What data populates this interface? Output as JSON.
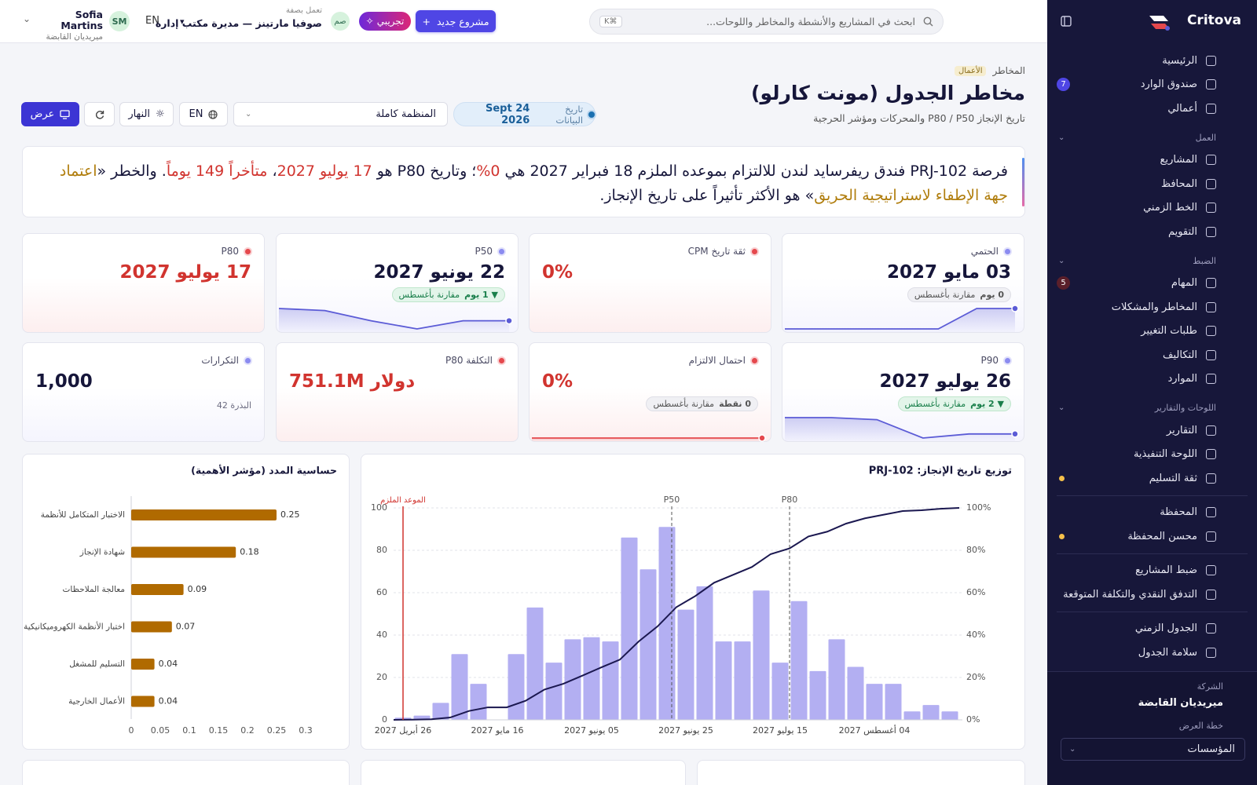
{
  "sidebar": {
    "brand": "Critova",
    "groups": [
      {
        "items": [
          {
            "label": "الرئيسية"
          },
          {
            "label": "صندوق الوارد",
            "badge": 7,
            "badge_color": "#4f46e5"
          },
          {
            "label": "أعمالي"
          }
        ]
      },
      {
        "title": "العمل",
        "items": [
          {
            "label": "المشاريع"
          },
          {
            "label": "المحافظ"
          },
          {
            "label": "الخط الزمني"
          },
          {
            "label": "التقويم"
          }
        ]
      },
      {
        "title": "الضبط",
        "items": [
          {
            "label": "المهام",
            "badge": 5,
            "badge_color": "#5a1f2a"
          },
          {
            "label": "المخاطر والمشكلات"
          },
          {
            "label": "طلبات التغيير"
          },
          {
            "label": "التكاليف"
          },
          {
            "label": "الموارد"
          }
        ]
      },
      {
        "title": "اللوحات والتقارير",
        "items": [
          {
            "label": "التقارير"
          },
          {
            "label": "اللوحة التنفيذية"
          },
          {
            "label": "ثقة التسليم",
            "dot": "#f5c04a"
          }
        ]
      },
      {
        "items": [
          {
            "label": "المحفظة"
          },
          {
            "label": "محسن المحفظة",
            "dot": "#f5c04a"
          }
        ]
      },
      {
        "items": [
          {
            "label": "ضبط المشاريع"
          },
          {
            "label": "التدفق النقدي والتكلفة المتوقعة"
          }
        ]
      },
      {
        "items": [
          {
            "label": "الجدول الزمني"
          },
          {
            "label": "سلامة الجدول"
          }
        ]
      }
    ],
    "footer": {
      "company_label": "الشركة",
      "company": "ميريديان القابضة",
      "plan_label": "خطة العرض",
      "plan": "المؤسسات"
    }
  },
  "topbar": {
    "search_placeholder": "ابحث في المشاريع والأنشطة والمخاطر واللوحات...",
    "shortcut": "K⌘",
    "new_project": "مشروع جديد",
    "demo": "تجريبي",
    "acting_initials": "صم",
    "acting_label": "تعمل بصفة",
    "acting_name": "صوفيا مارتينز — مديرة مكتب إدارة",
    "language": "EN",
    "user_initials": "SM",
    "user_name": "Sofia Martins",
    "user_company": "ميريديان القابضة"
  },
  "header": {
    "breadcrumb": "المخاطر",
    "tag": "الأعمال",
    "title": "مخاطر الجدول (مونت كارلو)",
    "subtitle": "تاريخ الإنجاز P80 / P50 والمحركات ومؤشر الحرجية"
  },
  "controls": {
    "data_date_label": "تاريخ البيانات",
    "data_date": "24 Sept 2026",
    "scope": "المنظمة كاملة",
    "language": "EN",
    "theme": "النهار",
    "view": "عرض"
  },
  "narrative": [
    {
      "text": "فرصة PRJ-102 فندق ريفرسايد لندن للالتزام بموعده الملزم 18 فبراير 2027 هي "
    },
    {
      "text": "0%",
      "color": "#d1342f"
    },
    {
      "text": "؛ وتاريخ P80 هو "
    },
    {
      "text": "17 يوليو 2027",
      "color": "#d1342f"
    },
    {
      "text": "، "
    },
    {
      "text": "متأخراً 149 يوماً",
      "color": "#d1342f"
    },
    {
      "text": ". والخطر «"
    },
    {
      "text": "اعتماد جهة الإطفاء لاستراتيجية الحريق",
      "color": "#b07d0c"
    },
    {
      "text": "» هو الأكثر تأثيراً على تاريخ الإنجاز."
    }
  ],
  "kpis": [
    {
      "label": "الحتمي",
      "value": "03 مايو 2027",
      "dot": "#8b8bf0",
      "value_color": "#16163a",
      "delta": {
        "amount": "0 يوم",
        "text": "مقارنة بأغسطس",
        "tone": "neutral"
      },
      "spark": [
        0,
        0,
        0,
        0,
        0,
        1,
        1
      ],
      "spark_color": "#5b5bd6"
    },
    {
      "label": "ثقة تاريخ CPM",
      "value": "0%",
      "dot": "#e5484d",
      "value_color": "#d1342f"
    },
    {
      "label": "P50",
      "value": "22 يونيو 2027",
      "dot": "#8b8bf0",
      "value_color": "#16163a",
      "delta": {
        "amount": "▼ 1 يوم",
        "text": "مقارنة بأغسطس",
        "tone": "good"
      },
      "spark": [
        10,
        9,
        4,
        0,
        4,
        4
      ],
      "spark_color": "#5b5bd6"
    },
    {
      "label": "P80",
      "value": "17 يوليو 2027",
      "dot": "#e5484d",
      "value_color": "#d1342f"
    },
    {
      "label": "P90",
      "value": "26 يوليو 2027",
      "dot": "#8b8bf0",
      "value_color": "#16163a",
      "delta": {
        "amount": "▼ 2 يوم",
        "text": "مقارنة بأغسطس",
        "tone": "good"
      },
      "spark": [
        10,
        10,
        9,
        0,
        2,
        2
      ],
      "spark_color": "#5b5bd6"
    },
    {
      "label": "احتمال الالتزام",
      "value": "0%",
      "dot": "#e5484d",
      "value_color": "#d1342f",
      "delta": {
        "amount": "0 نقطة",
        "text": "مقارنة بأغسطس",
        "tone": "neutral"
      },
      "spark": [
        0,
        0,
        0,
        0,
        0,
        0
      ],
      "spark_color": "#e5484d"
    },
    {
      "label": "التكلفة P80",
      "value": "751.1M دولار",
      "dot": "#e5484d",
      "value_color": "#d1342f"
    },
    {
      "label": "التكرارات",
      "value": "1,000",
      "dot": "#8b8bf0",
      "value_color": "#16163a",
      "note": "البذرة 42"
    }
  ],
  "chart_data": [
    {
      "type": "histogram",
      "title": "توزيع تاريخ الإنجاز: PRJ-102",
      "bins": [
        "2027-04-24",
        "2027-04-28",
        "2027-05-02",
        "2027-05-06",
        "2027-05-10",
        "2027-05-14",
        "2027-05-18",
        "2027-05-22",
        "2027-05-26",
        "2027-05-30",
        "2027-06-03",
        "2027-06-07",
        "2027-06-11",
        "2027-06-15",
        "2027-06-19",
        "2027-06-23",
        "2027-06-27",
        "2027-07-01",
        "2027-07-05",
        "2027-07-09",
        "2027-07-13",
        "2027-07-17",
        "2027-07-21",
        "2027-07-25",
        "2027-07-29",
        "2027-08-02",
        "2027-08-06",
        "2027-08-10",
        "2027-08-14",
        "2027-08-18",
        "2027-08-22"
      ],
      "values": [
        1,
        2,
        8,
        31,
        17,
        0,
        31,
        53,
        27,
        38,
        39,
        37,
        86,
        71,
        91,
        52,
        63,
        37,
        37,
        61,
        27,
        56,
        23,
        38,
        25,
        17,
        17,
        4,
        7,
        4
      ],
      "color": "#b3aff2",
      "cumulative": {
        "axis": "y2",
        "color": "#1b1850",
        "values": [
          0,
          0.1,
          0.3,
          1.1,
          4.2,
          5.9,
          5.9,
          9.0,
          14.3,
          17.0,
          20.8,
          24.7,
          28.4,
          37.0,
          44.1,
          53.2,
          58.4,
          64.7,
          68.4,
          72.1,
          78.2,
          80.9,
          86.5,
          88.8,
          92.6,
          95.1,
          96.8,
          98.5,
          98.9,
          99.6,
          100
        ]
      },
      "xlim": [
        "2027-04-24",
        "2027-08-22"
      ],
      "xticks": [
        {
          "value": "2027-04-26",
          "label": "26 أبريل 2027"
        },
        {
          "value": "2027-05-16",
          "label": "16 مايو 2027"
        },
        {
          "value": "2027-06-05",
          "label": "05 يونيو 2027"
        },
        {
          "value": "2027-06-25",
          "label": "25 يونيو 2027"
        },
        {
          "value": "2027-07-15",
          "label": "15 يوليو 2027"
        },
        {
          "value": "2027-08-04",
          "label": "04 أغسطس 2027"
        }
      ],
      "ylim": [
        0,
        100
      ],
      "yticks": [
        0,
        20,
        40,
        60,
        80,
        100
      ],
      "y2lim": [
        0,
        100
      ],
      "y2ticks": [
        {
          "value": 0,
          "label": "0%"
        },
        {
          "value": 20,
          "label": "20%"
        },
        {
          "value": 40,
          "label": "40%"
        },
        {
          "value": 60,
          "label": "60%"
        },
        {
          "value": 80,
          "label": "80%"
        },
        {
          "value": 100,
          "label": "100%"
        }
      ],
      "markers": [
        {
          "label": "P50",
          "x": "2027-06-22"
        },
        {
          "label": "P80",
          "x": "2027-07-17"
        }
      ],
      "commitment_label": "الموعد الملزم",
      "commitment_color": "#d1342f",
      "grid": true
    },
    {
      "type": "hbar",
      "title": "حساسية المدد (مؤشر الأهمية)",
      "categories": [
        "الاختبار المتكامل للأنظمة",
        "شهادة الإنجاز",
        "معالجة الملاحظات",
        "اختبار الأنظمة الكهروميكانيكية",
        "التسليم للمشغل",
        "الأعمال الخارجية"
      ],
      "values": [
        0.25,
        0.18,
        0.09,
        0.07,
        0.04,
        0.04
      ],
      "color": "#b06a00",
      "xlim": [
        0,
        0.3
      ],
      "xticks": [
        0,
        0.05,
        0.1,
        0.15,
        0.2,
        0.25,
        0.3
      ],
      "grid": false
    }
  ]
}
